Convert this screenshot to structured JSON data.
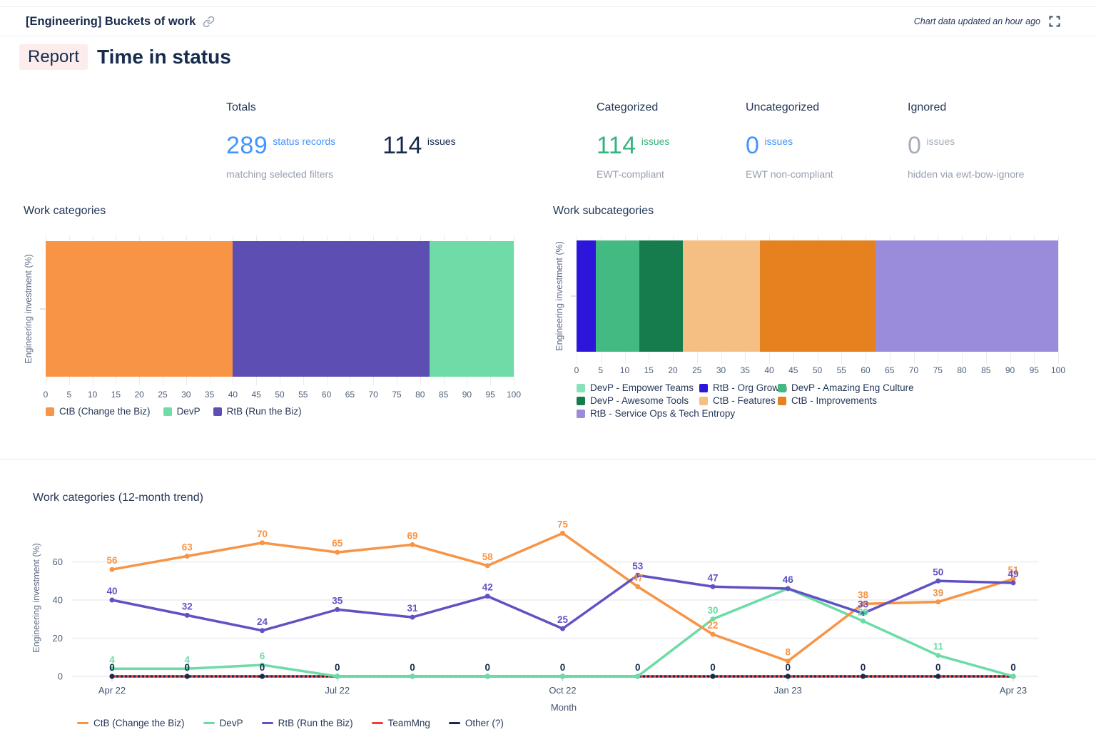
{
  "header": {
    "title": "[Engineering] Buckets of work",
    "updated": "Chart data updated an hour ago"
  },
  "icons": {
    "header_link": "link-icon",
    "top_right": "fullscreen-icon"
  },
  "page": {
    "badge": "Report",
    "title": "Time in status"
  },
  "colors": {
    "stat_blue": "#4294ff",
    "stat_green": "#36b37e",
    "stat_gray": "#a5adba",
    "navy": "#172b4d"
  },
  "stats": {
    "totals": {
      "label": "Totals",
      "records_value": "289",
      "records_unit": "status records",
      "records_caption": "matching selected filters",
      "issues_value": "114",
      "issues_unit": "issues"
    },
    "categorized": {
      "label": "Categorized",
      "value": "114",
      "unit": "issues",
      "caption": "EWT-compliant"
    },
    "uncategorized": {
      "label": "Uncategorized",
      "value": "0",
      "unit": "issues",
      "caption": "EWT non-compliant"
    },
    "ignored": {
      "label": "Ignored",
      "value": "0",
      "unit": "issues",
      "caption": "hidden via ewt-bow-ignore"
    }
  },
  "chart_data": [
    {
      "type": "bar",
      "variant": "horizontal-stacked",
      "title": "Work categories",
      "ylabel": "Engineering investment (%)",
      "xlim": [
        0,
        100
      ],
      "grid": true,
      "xticks": [
        0,
        5,
        10,
        15,
        20,
        25,
        30,
        35,
        40,
        45,
        50,
        55,
        60,
        65,
        70,
        75,
        80,
        85,
        90,
        95,
        100
      ],
      "segments": [
        {
          "label": "CtB (Change the Biz)",
          "value": 40,
          "color": "#f79446"
        },
        {
          "label": "RtB (Run the Biz)",
          "value": 42,
          "color": "#5d4eb3"
        },
        {
          "label": "DevP",
          "value": 18,
          "color": "#6fdba7"
        }
      ],
      "legend": [
        {
          "label": "CtB (Change the Biz)",
          "color": "#f79446"
        },
        {
          "label": "DevP",
          "color": "#6fdba7"
        },
        {
          "label": "RtB (Run the Biz)",
          "color": "#5d4eb3"
        }
      ],
      "legend_position": "bottom"
    },
    {
      "type": "bar",
      "variant": "horizontal-stacked",
      "title": "Work subcategories",
      "ylabel": "Engineering investment (%)",
      "xlim": [
        0,
        100
      ],
      "grid": true,
      "xticks": [
        0,
        5,
        10,
        15,
        20,
        25,
        30,
        35,
        40,
        45,
        50,
        55,
        60,
        65,
        70,
        75,
        80,
        85,
        90,
        95,
        100
      ],
      "segments": [
        {
          "label": "RtB - Org Growth",
          "value": 4,
          "color": "#2b16d9"
        },
        {
          "label": "DevP - Amazing Eng Culture",
          "value": 9,
          "color": "#44ba83"
        },
        {
          "label": "DevP - Awesome Tools",
          "value": 9,
          "color": "#177c4d"
        },
        {
          "label": "CtB - Features",
          "value": 16,
          "color": "#f5be82"
        },
        {
          "label": "CtB - Improvements",
          "value": 24,
          "color": "#e5821f"
        },
        {
          "label": "RtB - Service Ops & Tech Entropy",
          "value": 38,
          "color": "#9a8cdb"
        }
      ],
      "legend": [
        {
          "label": "DevP - Empower Teams",
          "color": "#86e2b8"
        },
        {
          "label": "RtB - Org Growth",
          "color": "#2b16d9"
        },
        {
          "label": "DevP - Amazing Eng Culture",
          "color": "#44ba83"
        },
        {
          "label": "DevP - Awesome Tools",
          "color": "#177c4d"
        },
        {
          "label": "CtB - Features",
          "color": "#f5be82"
        },
        {
          "label": "CtB - Improvements",
          "color": "#e5821f"
        },
        {
          "label": "RtB - Service Ops & Tech Entropy",
          "color": "#9a8cdb"
        }
      ],
      "legend_position": "bottom"
    },
    {
      "type": "line",
      "title": "Work categories (12-month trend)",
      "xlabel": "Month",
      "ylabel": "Engineering investment (%)",
      "ylim": [
        0,
        89
      ],
      "grid": true,
      "yticks": [
        0,
        20,
        40,
        60
      ],
      "xticks": [
        {
          "i": 0,
          "label": "Apr 22"
        },
        {
          "i": 3,
          "label": "Jul 22"
        },
        {
          "i": 6,
          "label": "Oct 22"
        },
        {
          "i": 9,
          "label": "Jan 23"
        },
        {
          "i": 12,
          "label": "Apr 23"
        }
      ],
      "point_count": 13,
      "series": [
        {
          "name": "CtB (Change the Biz)",
          "color": "#f79446",
          "dashed": false,
          "values": [
            56,
            63,
            70,
            65,
            69,
            58,
            75,
            47,
            22,
            8,
            38,
            39,
            51
          ]
        },
        {
          "name": "DevP",
          "color": "#6cdca6",
          "dashed": false,
          "values": [
            4,
            4,
            6,
            0,
            0,
            0,
            0,
            0,
            30,
            46,
            29,
            11,
            0
          ]
        },
        {
          "name": "RtB (Run the Biz)",
          "color": "#6152c4",
          "dashed": false,
          "values": [
            40,
            32,
            24,
            35,
            31,
            42,
            25,
            53,
            47,
            46,
            33,
            50,
            49
          ]
        },
        {
          "name": "TeamMng",
          "color": "#ee3d3d",
          "dashed": true,
          "values": [
            0,
            0,
            0,
            0,
            0,
            0,
            0,
            0,
            0,
            0,
            0,
            0,
            0
          ]
        },
        {
          "name": "Other (?)",
          "color": "#172b4d",
          "dashed": true,
          "values": [
            0,
            0,
            0,
            0,
            0,
            0,
            0,
            0,
            0,
            0,
            0,
            0,
            0
          ]
        }
      ],
      "legend_position": "bottom"
    }
  ]
}
